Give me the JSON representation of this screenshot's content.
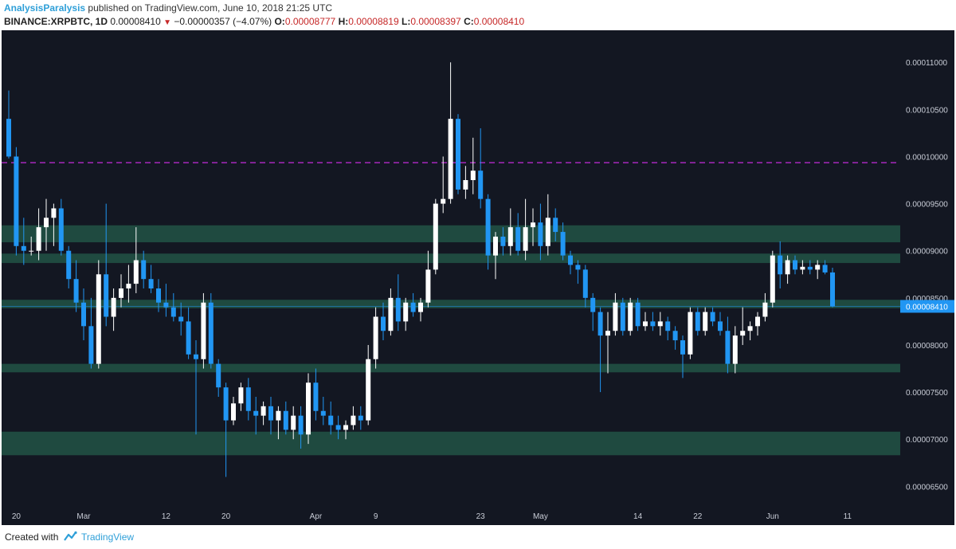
{
  "header": {
    "author": "AnalysisParalysis",
    "published_text": "published on TradingView.com, June 10, 2018 21:25 UTC",
    "symbol": "BINANCE:XRPBTC, 1D",
    "last": "0.00008410",
    "change": "−0.00000357 (−4.07%)",
    "o_label": "O:",
    "o_value": "0.00008777",
    "h_label": "H:",
    "h_value": "0.00008819",
    "l_label": "L:",
    "l_value": "0.00008397",
    "c_label": "C:",
    "c_value": "0.00008410"
  },
  "footer": {
    "created_with": "Created with",
    "brand": "TradingView"
  },
  "colors": {
    "background": "#131722",
    "bull_candle": "#ffffff",
    "bear_candle": "#2196f3",
    "zone": "#1f4a40",
    "dashed_line": "#9c27b0",
    "price_label_bg": "#2196f3"
  },
  "chart_data": {
    "type": "candlestick",
    "symbol": "BINANCE:XRPBTC",
    "interval": "1D",
    "y_ticks": [
      "0.00011000",
      "0.00010500",
      "0.00010000",
      "0.00009500",
      "0.00009000",
      "0.00008500",
      "0.00008000",
      "0.00007500",
      "0.00007000",
      "0.00006500"
    ],
    "ylim": [
      6.3e-05,
      0.0001134
    ],
    "x_labels": [
      {
        "label": "20",
        "index": 1
      },
      {
        "label": "Mar",
        "index": 10
      },
      {
        "label": "12",
        "index": 21
      },
      {
        "label": "20",
        "index": 29
      },
      {
        "label": "Apr",
        "index": 41
      },
      {
        "label": "9",
        "index": 49
      },
      {
        "label": "23",
        "index": 63
      },
      {
        "label": "May",
        "index": 71
      },
      {
        "label": "14",
        "index": 84
      },
      {
        "label": "22",
        "index": 92
      },
      {
        "label": "Jun",
        "index": 102
      },
      {
        "label": "11",
        "index": 112
      }
    ],
    "last_price_label": "0.00008410",
    "last_price": 8.41e-05,
    "resistance_line": 9.935e-05,
    "zones": [
      {
        "from": 9.27e-05,
        "to": 9.09e-05
      },
      {
        "from": 8.97e-05,
        "to": 8.87e-05
      },
      {
        "from": 8.48e-05,
        "to": 8.39e-05
      },
      {
        "from": 7.8e-05,
        "to": 7.71e-05
      },
      {
        "from": 7.08e-05,
        "to": 6.83e-05
      }
    ],
    "candles": [
      {
        "o": 0.000104,
        "h": 0.000107,
        "l": 9.98e-05,
        "c": 0.0001
      },
      {
        "o": 0.0001,
        "h": 0.000101,
        "l": 8.95e-05,
        "c": 9.05e-05
      },
      {
        "o": 9.05e-05,
        "h": 9.35e-05,
        "l": 8.85e-05,
        "c": 9e-05
      },
      {
        "o": 9e-05,
        "h": 9.15e-05,
        "l": 8.95e-05,
        "c": 9e-05
      },
      {
        "o": 9e-05,
        "h": 9.45e-05,
        "l": 8.9e-05,
        "c": 9.25e-05
      },
      {
        "o": 9.25e-05,
        "h": 9.55e-05,
        "l": 9e-05,
        "c": 9.35e-05
      },
      {
        "o": 9.35e-05,
        "h": 9.5e-05,
        "l": 9.05e-05,
        "c": 9.45e-05
      },
      {
        "o": 9.45e-05,
        "h": 9.55e-05,
        "l": 8.95e-05,
        "c": 9e-05
      },
      {
        "o": 9e-05,
        "h": 9.05e-05,
        "l": 8.6e-05,
        "c": 8.7e-05
      },
      {
        "o": 8.7e-05,
        "h": 8.9e-05,
        "l": 8.35e-05,
        "c": 8.45e-05
      },
      {
        "o": 8.45e-05,
        "h": 8.6e-05,
        "l": 8.05e-05,
        "c": 8.2e-05
      },
      {
        "o": 8.2e-05,
        "h": 8.5e-05,
        "l": 7.75e-05,
        "c": 7.8e-05
      },
      {
        "o": 7.8e-05,
        "h": 8.9e-05,
        "l": 7.75e-05,
        "c": 8.75e-05
      },
      {
        "o": 8.75e-05,
        "h": 9.5e-05,
        "l": 8.2e-05,
        "c": 8.3e-05
      },
      {
        "o": 8.3e-05,
        "h": 8.6e-05,
        "l": 8.15e-05,
        "c": 8.5e-05
      },
      {
        "o": 8.5e-05,
        "h": 8.75e-05,
        "l": 8.4e-05,
        "c": 8.6e-05
      },
      {
        "o": 8.6e-05,
        "h": 8.85e-05,
        "l": 8.45e-05,
        "c": 8.65e-05
      },
      {
        "o": 8.65e-05,
        "h": 9.25e-05,
        "l": 8.55e-05,
        "c": 8.9e-05
      },
      {
        "o": 8.9e-05,
        "h": 9e-05,
        "l": 8.6e-05,
        "c": 8.7e-05
      },
      {
        "o": 8.7e-05,
        "h": 8.85e-05,
        "l": 8.55e-05,
        "c": 8.6e-05
      },
      {
        "o": 8.6e-05,
        "h": 8.7e-05,
        "l": 8.35e-05,
        "c": 8.45e-05
      },
      {
        "o": 8.45e-05,
        "h": 8.65e-05,
        "l": 8.3e-05,
        "c": 8.4e-05
      },
      {
        "o": 8.4e-05,
        "h": 8.55e-05,
        "l": 8.25e-05,
        "c": 8.3e-05
      },
      {
        "o": 8.3e-05,
        "h": 8.45e-05,
        "l": 8.1e-05,
        "c": 8.25e-05
      },
      {
        "o": 8.25e-05,
        "h": 8.4e-05,
        "l": 7.85e-05,
        "c": 7.9e-05
      },
      {
        "o": 7.9e-05,
        "h": 8.05e-05,
        "l": 7.05e-05,
        "c": 7.85e-05
      },
      {
        "o": 7.85e-05,
        "h": 8.55e-05,
        "l": 7.75e-05,
        "c": 8.45e-05
      },
      {
        "o": 8.45e-05,
        "h": 8.55e-05,
        "l": 7.75e-05,
        "c": 7.8e-05
      },
      {
        "o": 7.8e-05,
        "h": 7.85e-05,
        "l": 7.45e-05,
        "c": 7.55e-05
      },
      {
        "o": 7.55e-05,
        "h": 7.6e-05,
        "l": 6.6e-05,
        "c": 7.2e-05
      },
      {
        "o": 7.2e-05,
        "h": 7.45e-05,
        "l": 7.15e-05,
        "c": 7.38e-05
      },
      {
        "o": 7.38e-05,
        "h": 7.6e-05,
        "l": 7.3e-05,
        "c": 7.55e-05
      },
      {
        "o": 7.55e-05,
        "h": 7.65e-05,
        "l": 7.2e-05,
        "c": 7.3e-05
      },
      {
        "o": 7.3e-05,
        "h": 7.45e-05,
        "l": 7.05e-05,
        "c": 7.25e-05
      },
      {
        "o": 7.25e-05,
        "h": 7.4e-05,
        "l": 7.15e-05,
        "c": 7.35e-05
      },
      {
        "o": 7.35e-05,
        "h": 7.45e-05,
        "l": 7.05e-05,
        "c": 7.2e-05
      },
      {
        "o": 7.2e-05,
        "h": 7.35e-05,
        "l": 7e-05,
        "c": 7.3e-05
      },
      {
        "o": 7.3e-05,
        "h": 7.4e-05,
        "l": 7.05e-05,
        "c": 7.1e-05
      },
      {
        "o": 7.1e-05,
        "h": 7.35e-05,
        "l": 7e-05,
        "c": 7.25e-05
      },
      {
        "o": 7.25e-05,
        "h": 7.35e-05,
        "l": 6.9e-05,
        "c": 7.05e-05
      },
      {
        "o": 7.05e-05,
        "h": 7.7e-05,
        "l": 6.95e-05,
        "c": 7.6e-05
      },
      {
        "o": 7.6e-05,
        "h": 7.75e-05,
        "l": 7.2e-05,
        "c": 7.3e-05
      },
      {
        "o": 7.3e-05,
        "h": 7.45e-05,
        "l": 7.15e-05,
        "c": 7.25e-05
      },
      {
        "o": 7.25e-05,
        "h": 7.4e-05,
        "l": 7.05e-05,
        "c": 7.15e-05
      },
      {
        "o": 7.15e-05,
        "h": 7.25e-05,
        "l": 7e-05,
        "c": 7.1e-05
      },
      {
        "o": 7.1e-05,
        "h": 7.2e-05,
        "l": 7e-05,
        "c": 7.15e-05
      },
      {
        "o": 7.15e-05,
        "h": 7.35e-05,
        "l": 7.1e-05,
        "c": 7.25e-05
      },
      {
        "o": 7.25e-05,
        "h": 7.35e-05,
        "l": 7.1e-05,
        "c": 7.2e-05
      },
      {
        "o": 7.2e-05,
        "h": 8e-05,
        "l": 7.15e-05,
        "c": 7.85e-05
      },
      {
        "o": 7.85e-05,
        "h": 8.4e-05,
        "l": 7.75e-05,
        "c": 8.3e-05
      },
      {
        "o": 8.3e-05,
        "h": 8.45e-05,
        "l": 8.05e-05,
        "c": 8.15e-05
      },
      {
        "o": 8.15e-05,
        "h": 8.6e-05,
        "l": 8.1e-05,
        "c": 8.5e-05
      },
      {
        "o": 8.5e-05,
        "h": 8.75e-05,
        "l": 8.15e-05,
        "c": 8.25e-05
      },
      {
        "o": 8.25e-05,
        "h": 8.5e-05,
        "l": 8.15e-05,
        "c": 8.45e-05
      },
      {
        "o": 8.45e-05,
        "h": 8.55e-05,
        "l": 8.3e-05,
        "c": 8.35e-05
      },
      {
        "o": 8.35e-05,
        "h": 8.5e-05,
        "l": 8.25e-05,
        "c": 8.45e-05
      },
      {
        "o": 8.45e-05,
        "h": 9e-05,
        "l": 8.4e-05,
        "c": 8.8e-05
      },
      {
        "o": 8.8e-05,
        "h": 9.55e-05,
        "l": 8.75e-05,
        "c": 9.5e-05
      },
      {
        "o": 9.5e-05,
        "h": 0.0001,
        "l": 9.4e-05,
        "c": 9.55e-05
      },
      {
        "o": 9.55e-05,
        "h": 0.00011,
        "l": 9.5e-05,
        "c": 0.000104
      },
      {
        "o": 0.000104,
        "h": 0.0001045,
        "l": 9.6e-05,
        "c": 9.65e-05
      },
      {
        "o": 9.65e-05,
        "h": 9.9e-05,
        "l": 9.55e-05,
        "c": 9.75e-05
      },
      {
        "o": 9.75e-05,
        "h": 0.000102,
        "l": 9.6e-05,
        "c": 9.85e-05
      },
      {
        "o": 9.85e-05,
        "h": 0.000103,
        "l": 9.45e-05,
        "c": 9.55e-05
      },
      {
        "o": 9.55e-05,
        "h": 9.6e-05,
        "l": 8.8e-05,
        "c": 8.95e-05
      },
      {
        "o": 8.95e-05,
        "h": 9.2e-05,
        "l": 8.7e-05,
        "c": 9.15e-05
      },
      {
        "o": 9.15e-05,
        "h": 9.25e-05,
        "l": 8.95e-05,
        "c": 9.05e-05
      },
      {
        "o": 9.05e-05,
        "h": 9.45e-05,
        "l": 8.95e-05,
        "c": 9.25e-05
      },
      {
        "o": 9.25e-05,
        "h": 9.4e-05,
        "l": 8.95e-05,
        "c": 9e-05
      },
      {
        "o": 9e-05,
        "h": 9.55e-05,
        "l": 8.9e-05,
        "c": 9.25e-05
      },
      {
        "o": 9.25e-05,
        "h": 9.45e-05,
        "l": 9.05e-05,
        "c": 9.3e-05
      },
      {
        "o": 9.3e-05,
        "h": 9.5e-05,
        "l": 8.9e-05,
        "c": 9.05e-05
      },
      {
        "o": 9.05e-05,
        "h": 9.6e-05,
        "l": 8.95e-05,
        "c": 9.35e-05
      },
      {
        "o": 9.35e-05,
        "h": 9.45e-05,
        "l": 9.1e-05,
        "c": 9.2e-05
      },
      {
        "o": 9.2e-05,
        "h": 9.3e-05,
        "l": 8.9e-05,
        "c": 8.95e-05
      },
      {
        "o": 8.95e-05,
        "h": 9e-05,
        "l": 8.75e-05,
        "c": 8.85e-05
      },
      {
        "o": 8.85e-05,
        "h": 8.9e-05,
        "l": 8.65e-05,
        "c": 8.8e-05
      },
      {
        "o": 8.8e-05,
        "h": 8.85e-05,
        "l": 8.4e-05,
        "c": 8.5e-05
      },
      {
        "o": 8.5e-05,
        "h": 8.55e-05,
        "l": 8.15e-05,
        "c": 8.35e-05
      },
      {
        "o": 8.35e-05,
        "h": 8.4e-05,
        "l": 7.5e-05,
        "c": 8.1e-05
      },
      {
        "o": 8.1e-05,
        "h": 8.35e-05,
        "l": 7.7e-05,
        "c": 8.15e-05
      },
      {
        "o": 8.15e-05,
        "h": 8.55e-05,
        "l": 8.1e-05,
        "c": 8.45e-05
      },
      {
        "o": 8.45e-05,
        "h": 8.5e-05,
        "l": 8.1e-05,
        "c": 8.15e-05
      },
      {
        "o": 8.15e-05,
        "h": 8.5e-05,
        "l": 8.1e-05,
        "c": 8.45e-05
      },
      {
        "o": 8.45e-05,
        "h": 8.5e-05,
        "l": 8.15e-05,
        "c": 8.2e-05
      },
      {
        "o": 8.2e-05,
        "h": 8.35e-05,
        "l": 8.15e-05,
        "c": 8.25e-05
      },
      {
        "o": 8.25e-05,
        "h": 8.35e-05,
        "l": 8.15e-05,
        "c": 8.2e-05
      },
      {
        "o": 8.2e-05,
        "h": 8.35e-05,
        "l": 8.1e-05,
        "c": 8.25e-05
      },
      {
        "o": 8.25e-05,
        "h": 8.3e-05,
        "l": 8.05e-05,
        "c": 8.15e-05
      },
      {
        "o": 8.15e-05,
        "h": 8.2e-05,
        "l": 7.95e-05,
        "c": 8.05e-05
      },
      {
        "o": 8.05e-05,
        "h": 8.1e-05,
        "l": 7.65e-05,
        "c": 7.9e-05
      },
      {
        "o": 7.9e-05,
        "h": 8.4e-05,
        "l": 7.85e-05,
        "c": 8.35e-05
      },
      {
        "o": 8.35e-05,
        "h": 8.4e-05,
        "l": 8.1e-05,
        "c": 8.15e-05
      },
      {
        "o": 8.15e-05,
        "h": 8.4e-05,
        "l": 8.1e-05,
        "c": 8.35e-05
      },
      {
        "o": 8.35e-05,
        "h": 8.4e-05,
        "l": 8.2e-05,
        "c": 8.25e-05
      },
      {
        "o": 8.25e-05,
        "h": 8.35e-05,
        "l": 8.1e-05,
        "c": 8.15e-05
      },
      {
        "o": 8.15e-05,
        "h": 8.3e-05,
        "l": 7.7e-05,
        "c": 7.8e-05
      },
      {
        "o": 7.8e-05,
        "h": 8.2e-05,
        "l": 7.7e-05,
        "c": 8.1e-05
      },
      {
        "o": 8.1e-05,
        "h": 8.4e-05,
        "l": 8e-05,
        "c": 8.15e-05
      },
      {
        "o": 8.15e-05,
        "h": 8.25e-05,
        "l": 8.05e-05,
        "c": 8.2e-05
      },
      {
        "o": 8.2e-05,
        "h": 8.35e-05,
        "l": 8.1e-05,
        "c": 8.3e-05
      },
      {
        "o": 8.3e-05,
        "h": 8.55e-05,
        "l": 8.25e-05,
        "c": 8.45e-05
      },
      {
        "o": 8.45e-05,
        "h": 9e-05,
        "l": 8.4e-05,
        "c": 8.95e-05
      },
      {
        "o": 8.95e-05,
        "h": 9.1e-05,
        "l": 8.6e-05,
        "c": 8.75e-05
      },
      {
        "o": 8.75e-05,
        "h": 8.95e-05,
        "l": 8.65e-05,
        "c": 8.9e-05
      },
      {
        "o": 8.9e-05,
        "h": 8.95e-05,
        "l": 8.75e-05,
        "c": 8.8e-05
      },
      {
        "o": 8.8e-05,
        "h": 8.9e-05,
        "l": 8.75e-05,
        "c": 8.83e-05
      },
      {
        "o": 8.83e-05,
        "h": 8.9e-05,
        "l": 8.75e-05,
        "c": 8.8e-05
      },
      {
        "o": 8.8e-05,
        "h": 8.9e-05,
        "l": 8.7e-05,
        "c": 8.85e-05
      },
      {
        "o": 8.85e-05,
        "h": 8.9e-05,
        "l": 8.75e-05,
        "c": 8.77e-05
      },
      {
        "o": 8.77e-05,
        "h": 8.82e-05,
        "l": 8.4e-05,
        "c": 8.41e-05
      }
    ]
  }
}
